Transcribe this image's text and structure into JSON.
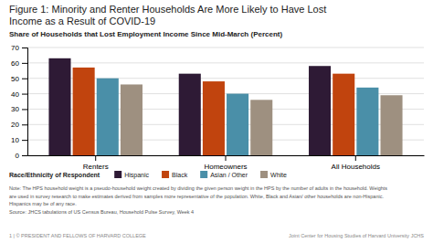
{
  "chart_data": {
    "type": "bar",
    "title": [
      "Figure 1: Minority and Renter Households Are More Likely to Have Lost",
      "Income as a Result of COVID-19"
    ],
    "subtitle": "Share of Households that Lost Employment Income Since Mid-March (Percent)",
    "categories": [
      "Renters",
      "Homeowners",
      "All Households"
    ],
    "series": [
      {
        "name": "Hispanic",
        "color": "#2e1a35",
        "values": [
          63,
          53,
          58
        ]
      },
      {
        "name": "Black",
        "color": "#c1440e",
        "values": [
          57,
          48,
          53
        ]
      },
      {
        "name": "Asian / Other",
        "color": "#4a8fa8",
        "values": [
          50,
          40,
          44
        ]
      },
      {
        "name": "White",
        "color": "#9e9080",
        "values": [
          46,
          36,
          39
        ]
      }
    ],
    "ylim": [
      0,
      70
    ],
    "yticks": [
      0,
      10,
      20,
      30,
      40,
      50,
      60,
      70
    ],
    "grid": true,
    "legend": "bottom",
    "annotations": [
      "Race/Ethnicity of Respondent",
      "Note: The HPS household weight is a pseudo-household weight created by dividing the given person weight in the HPS by the number of adults in the household. Weights",
      "are used in survey research to make estimates derived from samples more representative of the population. White, Black and Asian/ other households are non-Hispanic.",
      "Hispanics may be of any race.",
      "Source: JHCS tabulations of US Census Bureau, Household Pulse Survey, Week 4",
      "1 | © PRESIDENT AND FELLOWS OF HARVARD COLLEGE",
      "Joint Center for Housing Studies of Harvard University  JCHS"
    ]
  }
}
